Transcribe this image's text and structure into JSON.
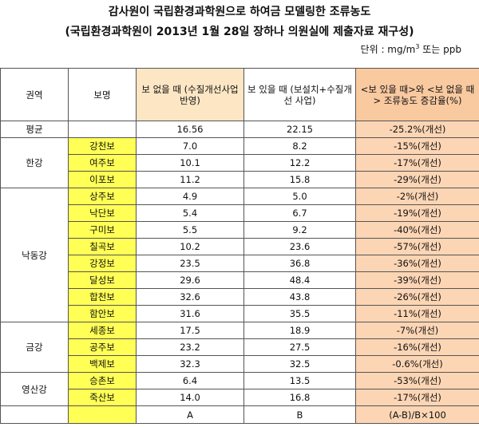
{
  "title": "감사원이 국립환경과학원으로 하여금 모델링한 조류농도",
  "subtitle": "(국립환경과학원이 2013년 1월 28일 장하나 의원실에 제출자료 재구성)",
  "unit": {
    "prefix": "단위 : mg/m",
    "sup": "3",
    "suffix": " 또는 ppb"
  },
  "table": {
    "header": [
      "권역",
      "보명",
      "보 없을 때 (수질개선사업 반영)",
      "보 있을 때 (보설치+수질개선 사업)",
      "<보 있을 때>와 <보 없을 때> 조류농도 증감율(%)"
    ],
    "average": [
      "평균",
      "16.56",
      "22.15",
      "-25.2%(개선)"
    ],
    "groups": [
      {
        "region": "한강",
        "rows": [
          [
            "강천보",
            "7.0",
            "8.2",
            "-15%(개선)"
          ],
          [
            "여주보",
            "10.1",
            "12.2",
            "-17%(개선)"
          ],
          [
            "이포보",
            "11.2",
            "15.8",
            "-29%(개선)"
          ]
        ]
      },
      {
        "region": "낙동강",
        "rows": [
          [
            "상주보",
            "4.9",
            "5.0",
            "-2%(개선)"
          ],
          [
            "낙단보",
            "5.4",
            "6.7",
            "-19%(개선)"
          ],
          [
            "구미보",
            "5.5",
            "9.2",
            "-40%(개선)"
          ],
          [
            "칠곡보",
            "10.2",
            "23.6",
            "-57%(개선)"
          ],
          [
            "강정보",
            "23.5",
            "36.8",
            "-36%(개선)"
          ],
          [
            "달성보",
            "29.6",
            "48.4",
            "-39%(개선)"
          ],
          [
            "합천보",
            "32.6",
            "43.8",
            "-26%(개선)"
          ],
          [
            "함안보",
            "31.6",
            "35.5",
            "-11%(개선)"
          ]
        ]
      },
      {
        "region": "금강",
        "rows": [
          [
            "세종보",
            "17.5",
            "18.9",
            "-7%(개선)"
          ],
          [
            "공주보",
            "23.2",
            "27.5",
            "-16%(개선)"
          ],
          [
            "백제보",
            "32.3",
            "32.5",
            "-0.6%(개선)"
          ]
        ]
      },
      {
        "region": "영산강",
        "rows": [
          [
            "승촌보",
            "6.4",
            "13.5",
            "-53%(개선)"
          ],
          [
            "죽산보",
            "14.0",
            "16.8",
            "-17%(개선)"
          ]
        ]
      }
    ],
    "footer": [
      "A",
      "B",
      "(A-B)/B×100"
    ]
  }
}
